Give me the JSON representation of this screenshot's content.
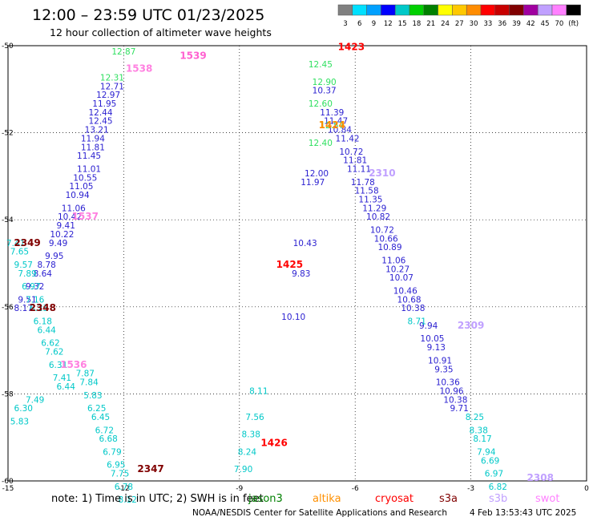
{
  "chart_data": {
    "type": "scatter",
    "title": "12:00 – 23:59 UTC 01/23/2025",
    "subtitle": "12 hour collection of altimeter wave heights",
    "xlim": [
      -15,
      0
    ],
    "ylim": [
      -60,
      -50
    ],
    "x_ticks": [
      -15,
      -12,
      -9,
      -6,
      -3,
      0
    ],
    "y_ticks": [
      -50,
      -52,
      -54,
      -56,
      -58,
      -60
    ],
    "grid": true,
    "colorbar": {
      "labels": [
        "3",
        "6",
        "9",
        "12",
        "15",
        "18",
        "21",
        "24",
        "27",
        "30",
        "33",
        "36",
        "39",
        "42",
        "45",
        "70",
        "(ft)"
      ],
      "colors": [
        "#808080",
        "#00e0ff",
        "#00a0ff",
        "#0000ff",
        "#00c8c8",
        "#00d000",
        "#008000",
        "#ffff00",
        "#ffc800",
        "#ff8c00",
        "#ff0000",
        "#c80000",
        "#800000",
        "#a000a0",
        "#c0a0ff",
        "#ff80ff",
        "#000000"
      ]
    },
    "series": [
      {
        "name": "jason3",
        "color": "#2a1fd0",
        "points": [
          [
            -12.3,
            -51.0,
            "12.71"
          ],
          [
            -12.4,
            -51.2,
            "12.97"
          ],
          [
            -12.5,
            -51.4,
            "11.95"
          ],
          [
            -12.6,
            -51.6,
            "12.44"
          ],
          [
            -12.6,
            -51.8,
            "12.45"
          ],
          [
            -12.7,
            -52.0,
            "13.21"
          ],
          [
            -12.8,
            -52.2,
            "11.94"
          ],
          [
            -12.8,
            -52.4,
            "11.81"
          ],
          [
            -12.9,
            -52.6,
            "11.45"
          ],
          [
            -12.9,
            -52.9,
            "11.01"
          ],
          [
            -13.0,
            -53.1,
            "10.55"
          ],
          [
            -13.1,
            -53.3,
            "11.05"
          ],
          [
            -13.2,
            -53.5,
            "10.94"
          ],
          [
            -13.3,
            -53.8,
            "11.06"
          ],
          [
            -13.4,
            -54.0,
            "10.42"
          ],
          [
            -13.5,
            -54.2,
            "9.41"
          ],
          [
            -13.6,
            -54.4,
            "10.22"
          ],
          [
            -13.7,
            -54.6,
            "9.49"
          ],
          [
            -13.8,
            -54.9,
            "9.95"
          ],
          [
            -14.0,
            -55.1,
            "8.78"
          ],
          [
            -14.1,
            -55.3,
            "8.64"
          ],
          [
            -14.3,
            -55.6,
            "9.32"
          ],
          [
            -14.5,
            -55.9,
            "9.51"
          ],
          [
            -14.6,
            -56.1,
            "8.17"
          ],
          [
            -6.8,
            -51.1,
            "10.37"
          ],
          [
            -6.6,
            -51.6,
            "11.39"
          ],
          [
            -6.5,
            -51.8,
            "11.47"
          ],
          [
            -6.4,
            -52.0,
            "10.84"
          ],
          [
            -6.2,
            -52.2,
            "11.42"
          ],
          [
            -6.1,
            -52.5,
            "10.72"
          ],
          [
            -6.0,
            -52.7,
            "11.81"
          ],
          [
            -5.9,
            -52.9,
            "11.11"
          ],
          [
            -5.8,
            -53.2,
            "11.78"
          ],
          [
            -5.7,
            -53.4,
            "11.58"
          ],
          [
            -5.6,
            -53.6,
            "11.35"
          ],
          [
            -5.5,
            -53.8,
            "11.29"
          ],
          [
            -5.4,
            -54.0,
            "10.82"
          ],
          [
            -5.3,
            -54.3,
            "10.72"
          ],
          [
            -5.2,
            -54.5,
            "10.66"
          ],
          [
            -5.1,
            -54.7,
            "10.89"
          ],
          [
            -5.0,
            -55.0,
            "11.06"
          ],
          [
            -4.9,
            -55.2,
            "10.27"
          ],
          [
            -4.8,
            -55.4,
            "10.07"
          ],
          [
            -4.7,
            -55.7,
            "10.46"
          ],
          [
            -4.6,
            -55.9,
            "10.68"
          ],
          [
            -4.5,
            -56.1,
            "10.38"
          ],
          [
            -4.1,
            -56.5,
            "9.94"
          ],
          [
            -4.0,
            -56.8,
            "10.05"
          ],
          [
            -3.9,
            -57.0,
            "9.13"
          ],
          [
            -3.8,
            -57.3,
            "10.91"
          ],
          [
            -3.7,
            -57.5,
            "9.35"
          ],
          [
            -3.6,
            -57.8,
            "10.36"
          ],
          [
            -3.5,
            -58.0,
            "10.96"
          ],
          [
            -3.4,
            -58.2,
            "10.38"
          ],
          [
            -3.3,
            -58.4,
            "9.71"
          ],
          [
            -7.0,
            -53.0,
            "12.00"
          ],
          [
            -7.1,
            -53.2,
            "11.97"
          ],
          [
            -7.3,
            -54.6,
            "10.43"
          ],
          [
            -7.4,
            -55.3,
            "9.83"
          ],
          [
            -7.6,
            -56.3,
            "10.10"
          ]
        ]
      },
      {
        "name": "altika",
        "color": "#00c8c8",
        "points": [
          [
            -14.8,
            -54.6,
            "7.41"
          ],
          [
            -14.7,
            -54.8,
            "7.65"
          ],
          [
            -14.6,
            -55.1,
            "9.57"
          ],
          [
            -14.5,
            -55.3,
            "7.89"
          ],
          [
            -14.4,
            -55.6,
            "6.97"
          ],
          [
            -14.3,
            -55.9,
            "7.16"
          ],
          [
            -14.2,
            -56.1,
            "6.23"
          ],
          [
            -14.1,
            -56.4,
            "6.18"
          ],
          [
            -14.0,
            -56.6,
            "6.44"
          ],
          [
            -13.9,
            -56.9,
            "6.62"
          ],
          [
            -13.8,
            -57.1,
            "7.62"
          ],
          [
            -13.7,
            -57.4,
            "6.31"
          ],
          [
            -13.6,
            -57.7,
            "7.41"
          ],
          [
            -13.5,
            -57.9,
            "6.44"
          ],
          [
            -14.3,
            -58.2,
            "7.49"
          ],
          [
            -14.6,
            -58.4,
            "6.30"
          ],
          [
            -14.7,
            -58.7,
            "5.83"
          ],
          [
            -13.0,
            -57.6,
            "7.87"
          ],
          [
            -12.9,
            -57.8,
            "7.84"
          ],
          [
            -12.8,
            -58.1,
            "5.83"
          ],
          [
            -12.7,
            -58.4,
            "6.25"
          ],
          [
            -12.6,
            -58.6,
            "6.45"
          ],
          [
            -12.5,
            -58.9,
            "6.72"
          ],
          [
            -12.4,
            -59.1,
            "6.68"
          ],
          [
            -12.3,
            -59.4,
            "6.79"
          ],
          [
            -12.2,
            -59.7,
            "6.95"
          ],
          [
            -12.1,
            -59.9,
            "7.75"
          ],
          [
            -12.0,
            -60.2,
            "6.78"
          ],
          [
            -11.9,
            -60.5,
            "8.12"
          ],
          [
            -4.4,
            -56.4,
            "8.71"
          ],
          [
            -2.9,
            -58.6,
            "8.25"
          ],
          [
            -2.8,
            -58.9,
            "8.38"
          ],
          [
            -2.7,
            -59.1,
            "8.17"
          ],
          [
            -2.6,
            -59.4,
            "7.94"
          ],
          [
            -2.5,
            -59.6,
            "6.69"
          ],
          [
            -2.4,
            -59.9,
            "6.97"
          ],
          [
            -2.3,
            -60.2,
            "6.82"
          ],
          [
            -8.5,
            -58.0,
            "8.11"
          ],
          [
            -8.6,
            -58.6,
            "7.56"
          ],
          [
            -8.7,
            -59.0,
            "8.38"
          ],
          [
            -8.8,
            -59.4,
            "8.24"
          ],
          [
            -8.9,
            -59.8,
            "7.90"
          ]
        ]
      },
      {
        "name": "cryosat",
        "color": "#30e060",
        "points": [
          [
            -12.0,
            -50.2,
            "12.87"
          ],
          [
            -12.3,
            -50.8,
            "12.31"
          ],
          [
            -6.9,
            -50.5,
            "12.45"
          ],
          [
            -6.8,
            -50.9,
            "12.90"
          ],
          [
            -6.9,
            -51.4,
            "12.60"
          ],
          [
            -6.6,
            -51.9,
            "12.57"
          ],
          [
            -6.9,
            -52.3,
            "12.40"
          ]
        ]
      }
    ],
    "time_labels": [
      {
        "label": "1539",
        "x": -10.2,
        "y": -50.3,
        "color": "#ff60d0"
      },
      {
        "label": "1538",
        "x": -11.6,
        "y": -50.6,
        "color": "#ff80e0"
      },
      {
        "label": "1537",
        "x": -13.0,
        "y": -54.0,
        "color": "#ff80e0"
      },
      {
        "label": "1536",
        "x": -13.3,
        "y": -57.4,
        "color": "#ff80e0"
      },
      {
        "label": "2349",
        "x": -14.5,
        "y": -54.6,
        "color": "#800000"
      },
      {
        "label": "2348",
        "x": -14.1,
        "y": -56.1,
        "color": "#800000"
      },
      {
        "label": "2347",
        "x": -11.3,
        "y": -59.8,
        "color": "#800000"
      },
      {
        "label": "1423",
        "x": -6.1,
        "y": -50.1,
        "color": "#ff0000"
      },
      {
        "label": "1424",
        "x": -6.6,
        "y": -51.9,
        "color": "#ff8c00"
      },
      {
        "label": "1425",
        "x": -7.7,
        "y": -55.1,
        "color": "#ff0000"
      },
      {
        "label": "1426",
        "x": -8.1,
        "y": -59.2,
        "color": "#ff0000"
      },
      {
        "label": "2310",
        "x": -5.3,
        "y": -53.0,
        "color": "#c0a0ff"
      },
      {
        "label": "2309",
        "x": -3.0,
        "y": -56.5,
        "color": "#c0a0ff"
      },
      {
        "label": "2308",
        "x": -1.2,
        "y": -60.0,
        "color": "#c0a0ff"
      }
    ],
    "legend": {
      "prefix": "note:  1) Time is in UTC; 2) SWH is in feet",
      "items": [
        {
          "name": "jason3",
          "color": "#008000"
        },
        {
          "name": "altika",
          "color": "#ff9000"
        },
        {
          "name": "cryosat",
          "color": "#ff0000"
        },
        {
          "name": "s3a",
          "color": "#800000"
        },
        {
          "name": "s3b",
          "color": "#c0a0ff"
        },
        {
          "name": "swot",
          "color": "#ff80ff"
        }
      ]
    },
    "footer_left": "NOAA/NESDIS Center for Satellite Applications and Research",
    "footer_right": "4 Feb 13:53:43 UTC 2025"
  }
}
